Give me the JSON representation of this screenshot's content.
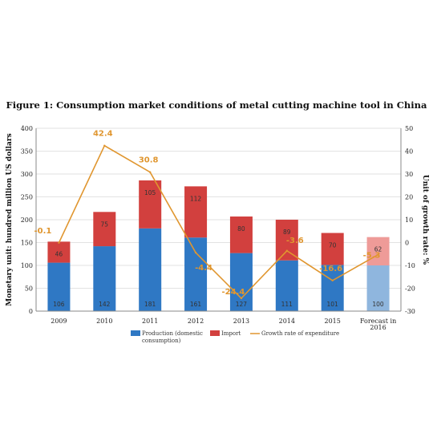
{
  "page": {
    "title": "Figure 1: Consumption market conditions of metal cutting machine tool in China"
  },
  "chart_data": {
    "type": "bar",
    "title": "Figure 1: Consumption market conditions of metal cutting machine tool in China",
    "categories": [
      "2009",
      "2010",
      "2011",
      "2012",
      "2013",
      "2014",
      "2015",
      "Forecast in 2016"
    ],
    "category_lines": [
      [
        "2009"
      ],
      [
        "2010"
      ],
      [
        "2011"
      ],
      [
        "2012"
      ],
      [
        "2013"
      ],
      [
        "2014"
      ],
      [
        "2015"
      ],
      [
        "Forecast in",
        "2016"
      ]
    ],
    "stacked": true,
    "ylabel": "Monetary unit: hundred million US dollars",
    "ylim": [
      0,
      400
    ],
    "yticks": [
      0,
      50,
      100,
      150,
      200,
      250,
      300,
      350,
      400
    ],
    "y2label": "Unit of growth rate: %",
    "y2lim": [
      -30,
      50
    ],
    "y2ticks": [
      -30,
      -20,
      -10,
      0,
      10,
      20,
      30,
      40,
      50
    ],
    "grid": true,
    "legend_position": "bottom",
    "series": [
      {
        "name": "Production (domestic consumption)",
        "legend_lines": [
          "Production (domestic",
          "consumption)"
        ],
        "kind": "bar",
        "color": "#2f78c4",
        "forecast_color": "#8fb6de",
        "values": [
          106,
          142,
          181,
          161,
          127,
          111,
          101,
          100
        ],
        "labels": [
          "106",
          "142",
          "181",
          "161",
          "127",
          "111",
          "101",
          "100"
        ]
      },
      {
        "name": "Import",
        "legend_lines": [
          "Import"
        ],
        "kind": "bar",
        "color": "#d2403e",
        "forecast_color": "#ee9b98",
        "values": [
          46,
          75,
          105,
          112,
          80,
          89,
          70,
          62
        ],
        "labels": [
          "46",
          "75",
          "105",
          "112",
          "80",
          "89",
          "70",
          "62"
        ]
      },
      {
        "name": "Growth rate of expenditure",
        "legend_lines": [
          "Growth rate of expenditure"
        ],
        "kind": "line",
        "axis": "right",
        "color": "#e0962f",
        "values": [
          -0.1,
          42.4,
          30.8,
          -4.4,
          -24.4,
          -3.6,
          -16.6,
          -5.3
        ],
        "labels": [
          "-0.1",
          "42.4",
          "30.8",
          "-4.4",
          "-24.4",
          "-3.6",
          "-16.6",
          "-5.3"
        ]
      }
    ]
  }
}
